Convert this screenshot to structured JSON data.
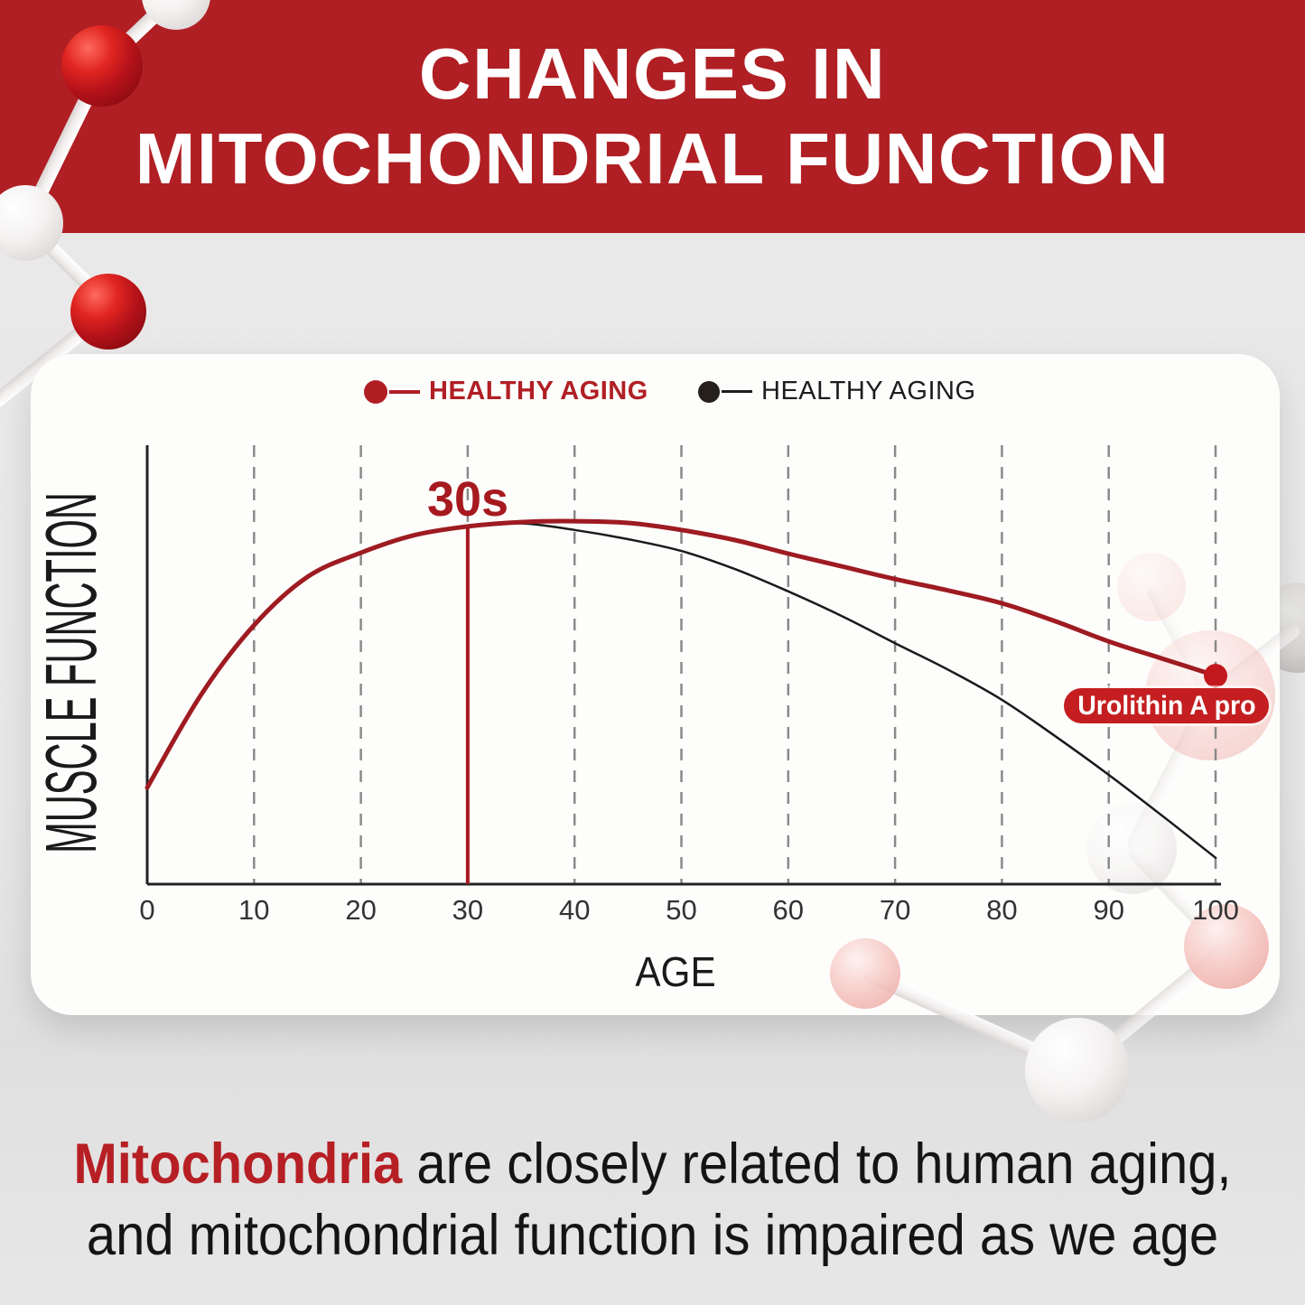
{
  "banner": {
    "title_line1": "CHANGES IN",
    "title_line2": "MITOCHONDRIAL FUNCTION",
    "background_color": "#b01f24"
  },
  "chart_data": {
    "type": "line",
    "title": "",
    "xlabel": "AGE",
    "ylabel": "MUSCLE FUNCTION",
    "xlim": [
      0,
      100
    ],
    "ylim": [
      0,
      100
    ],
    "x_ticks": [
      0,
      10,
      20,
      30,
      40,
      50,
      60,
      70,
      80,
      90,
      100
    ],
    "grid": "vertical-dashed",
    "legend_position": "top",
    "legend": [
      {
        "label": "HEALTHY AGING",
        "color": "#b01f24",
        "style": "bold"
      },
      {
        "label": "HEALTHY AGING",
        "color": "#1c1c1c",
        "style": "regular"
      }
    ],
    "marker": {
      "label": "30s",
      "x": 30,
      "color": "#a6191f"
    },
    "end_badge": {
      "label": "Urolithin A pro",
      "color": "#c41e20"
    },
    "series": [
      {
        "name": "healthy-aging-baseline",
        "color": "#1a1a1a",
        "stroke_width": 2.5,
        "x": [
          30,
          35,
          40,
          45,
          50,
          55,
          60,
          65,
          70,
          75,
          80,
          85,
          90,
          95,
          100
        ],
        "values": [
          81.5,
          82.2,
          80.7,
          78.6,
          75.9,
          71.8,
          66.7,
          61.1,
          54.9,
          48.8,
          42.0,
          33.7,
          24.9,
          15.6,
          6.0
        ]
      },
      {
        "name": "healthy-aging-urolithin",
        "color": "#9e1b21",
        "stroke_width": 5,
        "end_dot": true,
        "end_dot_color": "#c2191d",
        "x": [
          0,
          5,
          10,
          15,
          20,
          25,
          30,
          35,
          40,
          45,
          50,
          55,
          60,
          65,
          70,
          75,
          80,
          85,
          90,
          95,
          100
        ],
        "values": [
          22.0,
          43.0,
          59.0,
          70.0,
          75.5,
          79.5,
          81.5,
          82.5,
          82.7,
          82.3,
          80.7,
          78.4,
          75.3,
          72.4,
          69.5,
          66.9,
          64.0,
          59.9,
          55.3,
          51.4,
          47.5
        ]
      }
    ]
  },
  "footer": {
    "highlight": "Mitochondria",
    "line1_rest": " are closely related to human aging,",
    "line2": "and mitochondrial function is impaired as we age"
  }
}
